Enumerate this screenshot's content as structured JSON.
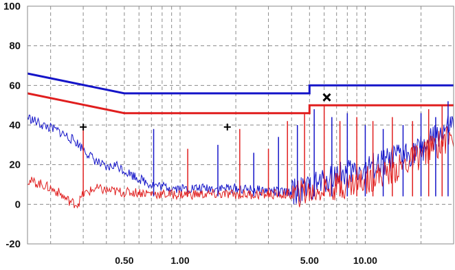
{
  "chart_data": {
    "type": "line",
    "title": "",
    "xlabel": "",
    "ylabel": "",
    "xscale": "log",
    "xlim": [
      0.15,
      30
    ],
    "ylim": [
      -20,
      100
    ],
    "grid": true,
    "yticks": [
      {
        "value": 100,
        "label": "100"
      },
      {
        "value": 80,
        "label": "80"
      },
      {
        "value": 60,
        "label": "60"
      },
      {
        "value": 40,
        "label": "40"
      },
      {
        "value": 20,
        "label": "20"
      },
      {
        "value": 0,
        "label": "0"
      },
      {
        "value": -20,
        "label": "-20"
      }
    ],
    "xticks": [
      {
        "value": 0.5,
        "label": "0.50"
      },
      {
        "value": 1,
        "label": "1.00"
      },
      {
        "value": 5,
        "label": "5.00"
      },
      {
        "value": 10,
        "label": "10.00"
      }
    ],
    "colors": {
      "blue": "#1414c8",
      "red": "#e01e1e",
      "grid": "#8a8a8a"
    },
    "series": [
      {
        "color": "#1414c8",
        "style": "thick",
        "x": [
          0.15,
          0.5,
          0.5,
          5,
          5,
          30
        ],
        "y": [
          66,
          56,
          56,
          56,
          60,
          60
        ]
      },
      {
        "color": "#e01e1e",
        "style": "thick",
        "x": [
          0.15,
          0.5,
          0.5,
          5,
          5,
          30
        ],
        "y": [
          56,
          46,
          46,
          46,
          50,
          50
        ]
      },
      {
        "color": "#1414c8",
        "style": "thin",
        "x": [
          0.15,
          0.18,
          0.22,
          0.27,
          0.3,
          0.33,
          0.35,
          0.4,
          0.45,
          0.5,
          0.6,
          0.7,
          0.8,
          1.0,
          1.3,
          1.6,
          2.0,
          2.5,
          3.0,
          3.5,
          4.0,
          4.5,
          5.0,
          5.5,
          6.0,
          7.0,
          8.0,
          10.0,
          12.0,
          15.0,
          20.0,
          25.0,
          30.0
        ],
        "y": [
          44,
          40,
          37,
          32,
          28,
          24,
          22,
          18,
          20,
          17,
          13,
          10,
          9,
          8,
          8,
          8,
          8,
          7,
          7,
          6,
          6,
          7,
          8,
          10,
          12,
          15,
          16,
          18,
          20,
          24,
          28,
          35,
          40
        ]
      },
      {
        "color": "#e01e1e",
        "style": "thin",
        "x": [
          0.15,
          0.18,
          0.2,
          0.22,
          0.24,
          0.26,
          0.28,
          0.3,
          0.35,
          0.4,
          0.5,
          0.6,
          0.8,
          1.0,
          1.5,
          2.0,
          3.0,
          4.0,
          5.0,
          6.0,
          8.0,
          10.0,
          15.0,
          20.0,
          30.0
        ],
        "y": [
          12,
          10,
          8,
          6,
          3,
          1,
          0,
          5,
          8,
          7,
          6,
          6,
          5,
          5,
          5,
          5,
          5,
          5,
          6,
          8,
          10,
          12,
          18,
          25,
          35
        ]
      }
    ],
    "peaks": {
      "x": [
        0.3,
        0.72,
        1.1,
        1.6,
        2.1,
        2.5,
        3.0,
        3.4,
        3.8,
        4.3,
        4.7,
        5.3,
        6.0,
        6.6,
        7.3,
        8.0,
        9.0,
        10.0,
        11.0,
        12.5,
        14.0,
        16.0,
        18.0,
        20.0,
        22.0,
        24.0,
        26.0,
        28.0
      ],
      "y": [
        38,
        38,
        28,
        30,
        38,
        26,
        28,
        34,
        42,
        40,
        46,
        48,
        50,
        44,
        42,
        46,
        44,
        40,
        42,
        38,
        44,
        40,
        42,
        46,
        48,
        44,
        50,
        52
      ]
    },
    "markers": [
      {
        "symbol": "+",
        "x": 0.3,
        "y": 39
      },
      {
        "symbol": "+",
        "x": 1.8,
        "y": 39
      },
      {
        "symbol": "x",
        "x": 6.2,
        "y": 54
      }
    ]
  }
}
